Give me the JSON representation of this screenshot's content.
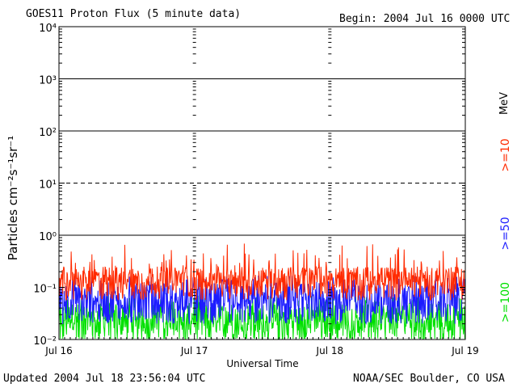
{
  "header": {
    "title": "GOES11 Proton Flux (5 minute data)",
    "begin": "Begin: 2004 Jul 16 0000 UTC"
  },
  "footer": {
    "updated": "Updated 2004 Jul 18 23:56:04 UTC",
    "credit": "NOAA/SEC Boulder, CO USA"
  },
  "chart_data": {
    "type": "line",
    "title": "GOES11 Proton Flux (5 minute data)",
    "xlabel": "Universal Time",
    "ylabel": "Particles cm⁻²s⁻¹sr⁻¹",
    "y_scale": "log",
    "ylim": [
      0.01,
      10000
    ],
    "y_ticks": [
      {
        "value": 0.01,
        "label": "10⁻²"
      },
      {
        "value": 0.1,
        "label": "10⁻¹"
      },
      {
        "value": 1,
        "label": "10⁰"
      },
      {
        "value": 10,
        "label": "10¹"
      },
      {
        "value": 100,
        "label": "10²"
      },
      {
        "value": 1000,
        "label": "10³"
      },
      {
        "value": 10000,
        "label": "10⁴"
      }
    ],
    "x_ticks": [
      "Jul 16",
      "Jul 17",
      "Jul 18",
      "Jul 19"
    ],
    "xlim_days": [
      0,
      3
    ],
    "threshold_lines": [
      {
        "value": 10,
        "style": "dashed"
      },
      {
        "value": 1,
        "style": "solid"
      },
      {
        "value": 100,
        "style": "solid"
      },
      {
        "value": 1000,
        "style": "solid"
      }
    ],
    "legend_placement": "right",
    "unit_label": "MeV",
    "series": [
      {
        "name": ">=10",
        "color": "#ff2a00",
        "base": 0.1,
        "typical_peak": 0.25,
        "max": 0.7
      },
      {
        "name": ">=50",
        "color": "#1c1cff",
        "base": 0.035,
        "typical_peak": 0.12,
        "max": 0.17
      },
      {
        "name": ">=100",
        "color": "#00e000",
        "base": 0.015,
        "typical_peak": 0.05,
        "max": 0.07
      }
    ]
  }
}
